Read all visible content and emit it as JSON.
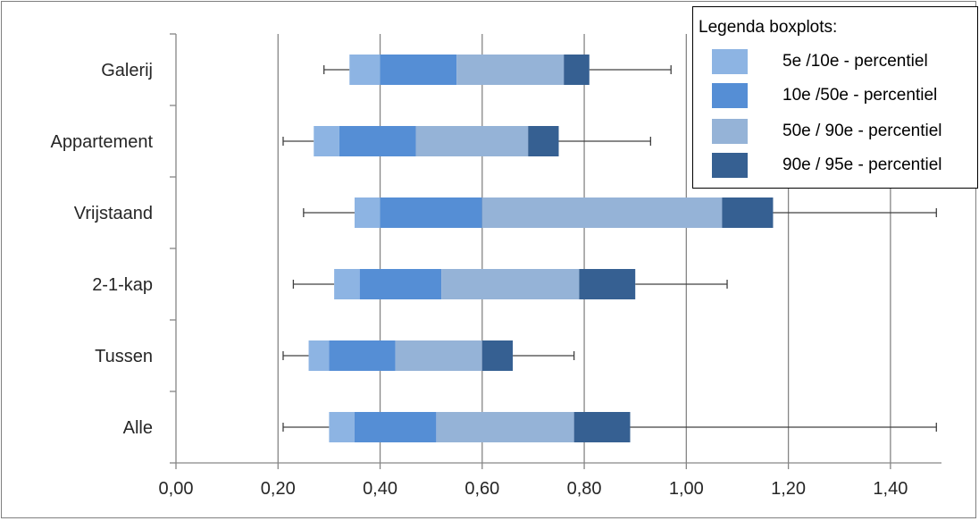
{
  "chart_data": {
    "type": "bar",
    "orientation": "horizontal",
    "subtype": "boxplot",
    "categories": [
      "Galerij",
      "Appartement",
      "Vrijstaand",
      "2-1-kap",
      "Tussen",
      "Alle"
    ],
    "whisker_min": [
      0.29,
      0.21,
      0.25,
      0.23,
      0.21,
      0.21
    ],
    "p5": [
      0.34,
      0.27,
      0.35,
      0.31,
      0.26,
      0.3
    ],
    "p10": [
      0.4,
      0.32,
      0.4,
      0.36,
      0.3,
      0.35
    ],
    "p50": [
      0.55,
      0.47,
      0.6,
      0.52,
      0.43,
      0.51
    ],
    "p90": [
      0.76,
      0.69,
      1.07,
      0.79,
      0.6,
      0.78
    ],
    "p95": [
      0.81,
      0.75,
      1.17,
      0.9,
      0.66,
      0.89
    ],
    "whisker_max": [
      0.97,
      0.93,
      1.49,
      1.08,
      0.78,
      1.49
    ],
    "xlim": [
      0,
      1.5
    ],
    "xticks": [
      "0,00",
      "0,20",
      "0,40",
      "0,60",
      "0,80",
      "1,00",
      "1,20",
      "1,40"
    ],
    "xtick_values": [
      0,
      0.2,
      0.4,
      0.6,
      0.8,
      1.0,
      1.2,
      1.4
    ],
    "grid": "vertical",
    "legend": {
      "title": "Legenda boxplots:",
      "placement": "top-right",
      "entries": [
        {
          "label": "5e /10e - percentiel",
          "color": "#8db4e3"
        },
        {
          "label": "10e /50e - percentiel",
          "color": "#558ed5"
        },
        {
          "label": "50e / 90e - percentiel",
          "color": "#95b3d7"
        },
        {
          "label": "90e / 95e - percentiel",
          "color": "#366092"
        }
      ]
    }
  }
}
